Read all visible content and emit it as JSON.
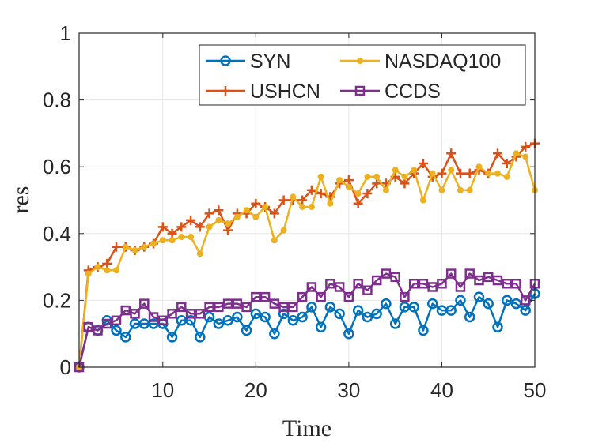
{
  "chart_data": {
    "type": "line",
    "title": "",
    "xlabel": "Time",
    "ylabel": "res",
    "xlim": [
      1,
      50
    ],
    "ylim": [
      0,
      1
    ],
    "xticks": [
      10,
      20,
      30,
      40,
      50
    ],
    "yticks": [
      0,
      0.2,
      0.4,
      0.6,
      0.8,
      1
    ],
    "xtick_labels": [
      "10",
      "20",
      "30",
      "40",
      "50"
    ],
    "ytick_labels": [
      "0",
      "0.2",
      "0.4",
      "0.6",
      "0.8",
      "1"
    ],
    "grid": true,
    "legend_position": "top-right",
    "x": [
      1,
      2,
      3,
      4,
      5,
      6,
      7,
      8,
      9,
      10,
      11,
      12,
      13,
      14,
      15,
      16,
      17,
      18,
      19,
      20,
      21,
      22,
      23,
      24,
      25,
      26,
      27,
      28,
      29,
      30,
      31,
      32,
      33,
      34,
      35,
      36,
      37,
      38,
      39,
      40,
      41,
      42,
      43,
      44,
      45,
      46,
      47,
      48,
      49,
      50
    ],
    "series": [
      {
        "name": "SYN",
        "color": "#0072BD",
        "marker": "circle",
        "values": [
          0.0,
          0.12,
          0.11,
          0.14,
          0.11,
          0.09,
          0.13,
          0.13,
          0.13,
          0.13,
          0.09,
          0.14,
          0.14,
          0.09,
          0.15,
          0.13,
          0.14,
          0.15,
          0.11,
          0.16,
          0.15,
          0.1,
          0.16,
          0.14,
          0.15,
          0.18,
          0.12,
          0.18,
          0.16,
          0.1,
          0.17,
          0.15,
          0.16,
          0.19,
          0.13,
          0.18,
          0.18,
          0.11,
          0.19,
          0.17,
          0.17,
          0.2,
          0.15,
          0.21,
          0.19,
          0.12,
          0.2,
          0.19,
          0.17,
          0.22
        ]
      },
      {
        "name": "USHCN",
        "color": "#D95319",
        "marker": "plus",
        "values": [
          0.0,
          0.29,
          0.3,
          0.31,
          0.36,
          0.36,
          0.35,
          0.36,
          0.37,
          0.42,
          0.4,
          0.42,
          0.44,
          0.42,
          0.46,
          0.47,
          0.41,
          0.46,
          0.46,
          0.49,
          0.48,
          0.46,
          0.5,
          0.5,
          0.5,
          0.53,
          0.52,
          0.51,
          0.55,
          0.56,
          0.49,
          0.52,
          0.55,
          0.55,
          0.57,
          0.55,
          0.58,
          0.61,
          0.57,
          0.58,
          0.64,
          0.58,
          0.58,
          0.59,
          0.58,
          0.64,
          0.61,
          0.63,
          0.66,
          0.67
        ]
      },
      {
        "name": "NASDAQ100",
        "color": "#EDB120",
        "marker": "dot",
        "values": [
          0.0,
          0.28,
          0.3,
          0.29,
          0.29,
          0.36,
          0.35,
          0.36,
          0.37,
          0.38,
          0.38,
          0.39,
          0.39,
          0.34,
          0.42,
          0.44,
          0.43,
          0.45,
          0.47,
          0.45,
          0.48,
          0.38,
          0.41,
          0.51,
          0.48,
          0.48,
          0.57,
          0.49,
          0.56,
          0.54,
          0.52,
          0.57,
          0.57,
          0.53,
          0.59,
          0.57,
          0.59,
          0.5,
          0.58,
          0.53,
          0.59,
          0.53,
          0.53,
          0.6,
          0.58,
          0.58,
          0.57,
          0.64,
          0.63,
          0.53
        ]
      },
      {
        "name": "CCDS",
        "color": "#7E2F8E",
        "marker": "square",
        "values": [
          0.0,
          0.12,
          0.11,
          0.13,
          0.14,
          0.17,
          0.16,
          0.19,
          0.15,
          0.14,
          0.16,
          0.18,
          0.16,
          0.16,
          0.18,
          0.18,
          0.19,
          0.19,
          0.18,
          0.21,
          0.21,
          0.19,
          0.18,
          0.18,
          0.21,
          0.24,
          0.21,
          0.25,
          0.24,
          0.21,
          0.25,
          0.23,
          0.26,
          0.28,
          0.27,
          0.21,
          0.25,
          0.25,
          0.24,
          0.25,
          0.28,
          0.24,
          0.28,
          0.26,
          0.27,
          0.26,
          0.25,
          0.25,
          0.2,
          0.25
        ]
      }
    ]
  }
}
